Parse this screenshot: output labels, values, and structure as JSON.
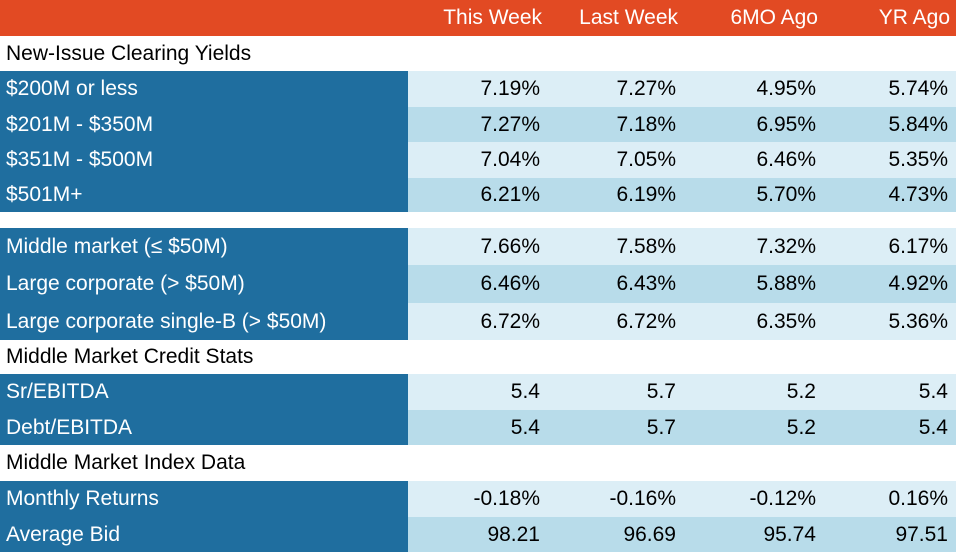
{
  "headers": {
    "this_week": "This Week",
    "last_week": "Last Week",
    "six_mo_ago": "6MO Ago",
    "yr_ago": "YR Ago"
  },
  "sections": {
    "clearing_yields": "New-Issue Clearing Yields",
    "credit_stats": "Middle Market Credit Stats",
    "index_data": "Middle Market Index Data"
  },
  "rows": [
    {
      "label": "$200M or less",
      "values": [
        "7.19%",
        "7.27%",
        "4.95%",
        "5.74%"
      ]
    },
    {
      "label": "$201M - $350M",
      "values": [
        "7.27%",
        "7.18%",
        "6.95%",
        "5.84%"
      ]
    },
    {
      "label": "$351M - $500M",
      "values": [
        "7.04%",
        "7.05%",
        "6.46%",
        "5.35%"
      ]
    },
    {
      "label": "$501M+",
      "values": [
        "6.21%",
        "6.19%",
        "5.70%",
        "4.73%"
      ]
    },
    {
      "label": "Middle market (≤ $50M)",
      "values": [
        "7.66%",
        "7.58%",
        "7.32%",
        "6.17%"
      ]
    },
    {
      "label": "Large corporate (> $50M)",
      "values": [
        "6.46%",
        "6.43%",
        "5.88%",
        "4.92%"
      ]
    },
    {
      "label": "Large corporate single-B (> $50M)",
      "values": [
        "6.72%",
        "6.72%",
        "6.35%",
        "5.36%"
      ]
    },
    {
      "label": "Sr/EBITDA",
      "values": [
        "5.4",
        "5.7",
        "5.2",
        "5.4"
      ]
    },
    {
      "label": "Debt/EBITDA",
      "values": [
        "5.4",
        "5.7",
        "5.2",
        "5.4"
      ]
    },
    {
      "label": "Monthly Returns",
      "values": [
        "-0.18%",
        "-0.16%",
        "-0.12%",
        "0.16%"
      ]
    },
    {
      "label": "Average Bid",
      "values": [
        "98.21",
        "96.69",
        "95.74",
        "97.51"
      ]
    }
  ],
  "colors": {
    "header_bg": "#e24a23",
    "label_bg": "#1f6e9f",
    "cell_light": "#dceef6",
    "cell_medium": "#b8dcea"
  }
}
